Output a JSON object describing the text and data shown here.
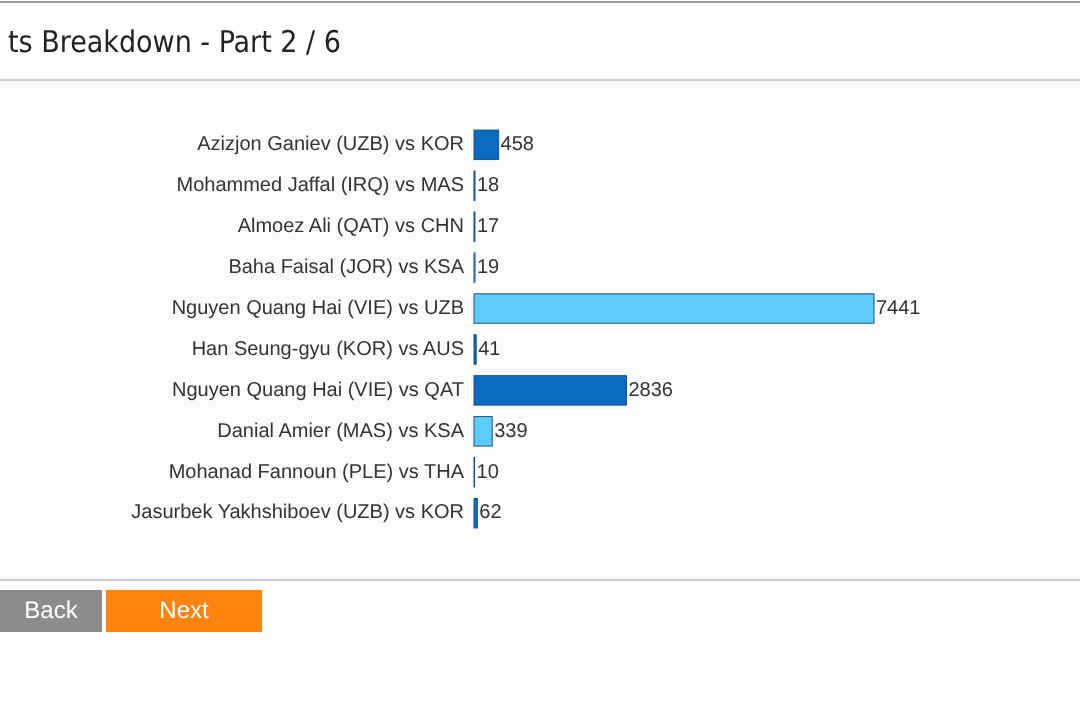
{
  "chart_data": {
    "type": "bar",
    "orientation": "horizontal",
    "title": "ts Breakdown - Part 2 / 6",
    "categories": [
      "Azizjon Ganiev (UZB) vs KOR",
      "Mohammed Jaffal (IRQ) vs MAS",
      "Almoez Ali (QAT) vs CHN",
      "Baha Faisal (JOR) vs KSA",
      "Nguyen Quang Hai (VIE) vs UZB",
      "Han Seung-gyu (KOR) vs AUS",
      "Nguyen Quang Hai (VIE) vs QAT",
      "Danial Amier (MAS) vs KSA",
      "Mohanad Fannoun (PLE) vs THA",
      "Jasurbek Yakhshiboev (UZB) vs KOR"
    ],
    "values": [
      458,
      18,
      17,
      19,
      7441,
      41,
      2836,
      339,
      10,
      62
    ],
    "colors": [
      "#0b6bbf",
      "#5ccbf7",
      "#0b6bbf",
      "#5ccbf7",
      "#5ccbf7",
      "#0b6bbf",
      "#0b6bbf",
      "#5ccbf7",
      "#5ccbf7",
      "#0b6bbf"
    ],
    "data_labels": true,
    "annotations": [
      "Back",
      "Next"
    ]
  }
}
